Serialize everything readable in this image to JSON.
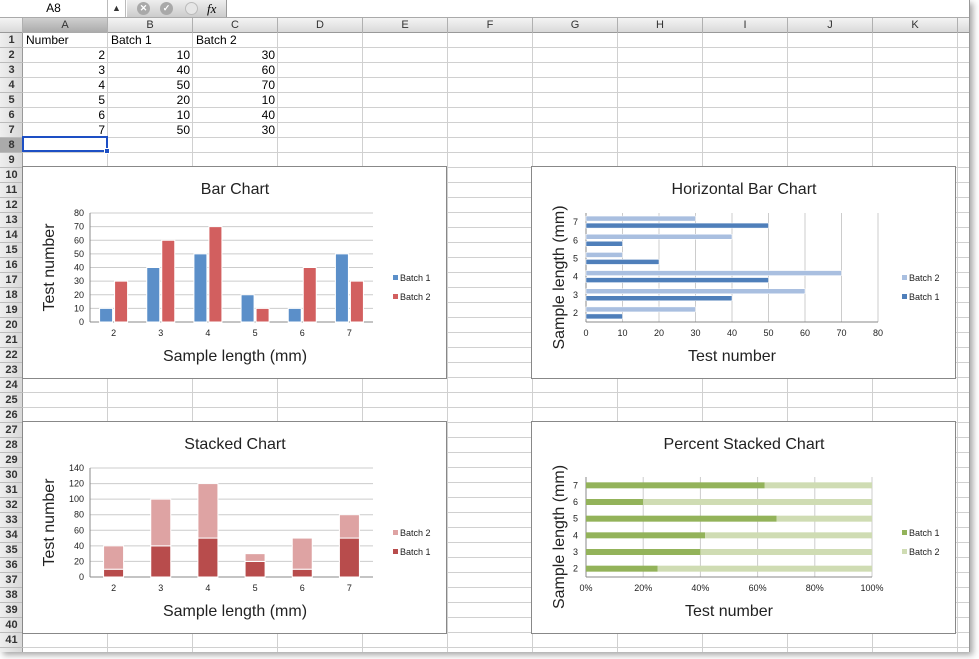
{
  "formula_bar": {
    "name_box": "A8",
    "stepper_icon": "up-down-arrows",
    "cancel_icon": "x-circle",
    "confirm_icon": "check-circle",
    "fx_label": "fx",
    "formula": ""
  },
  "columns": [
    "A",
    "B",
    "C",
    "D",
    "E",
    "F",
    "G",
    "H",
    "I",
    "J",
    "K"
  ],
  "selected_cell": "A8",
  "sheet": {
    "headers": [
      "Number",
      "Batch 1",
      "Batch 2"
    ],
    "rows": [
      [
        "2",
        "10",
        "30"
      ],
      [
        "3",
        "40",
        "60"
      ],
      [
        "4",
        "50",
        "70"
      ],
      [
        "5",
        "20",
        "10"
      ],
      [
        "6",
        "10",
        "40"
      ],
      [
        "7",
        "50",
        "30"
      ]
    ]
  },
  "chart_data": [
    {
      "type": "bar",
      "title": "Bar Chart",
      "xlabel": "Sample length (mm)",
      "ylabel": "Test number",
      "categories": [
        "2",
        "3",
        "4",
        "5",
        "6",
        "7"
      ],
      "series": [
        {
          "name": "Batch 1",
          "values": [
            10,
            40,
            50,
            20,
            10,
            50
          ],
          "color": "#5b8fc9"
        },
        {
          "name": "Batch 2",
          "values": [
            30,
            60,
            70,
            10,
            40,
            30
          ],
          "color": "#d25f5f"
        }
      ],
      "ylim": [
        0,
        80
      ],
      "ticks": [
        "0",
        "10",
        "20",
        "30",
        "40",
        "50",
        "60",
        "70",
        "80"
      ],
      "grid": true,
      "legend": "right"
    },
    {
      "type": "bar",
      "orientation": "horizontal",
      "title": "Horizontal Bar Chart",
      "xlabel": "Test number",
      "ylabel": "Sample length (mm)",
      "categories": [
        "2",
        "3",
        "4",
        "5",
        "6",
        "7"
      ],
      "series": [
        {
          "name": "Batch 1",
          "values": [
            10,
            40,
            50,
            20,
            10,
            50
          ],
          "color": "#4f7fba"
        },
        {
          "name": "Batch 2",
          "values": [
            30,
            60,
            70,
            10,
            40,
            30
          ],
          "color": "#a9bfe0"
        }
      ],
      "xlim": [
        0,
        80
      ],
      "ticks": [
        "0",
        "10",
        "20",
        "30",
        "40",
        "50",
        "60",
        "70",
        "80"
      ],
      "grid": true,
      "legend": "right",
      "legend_order": [
        "Batch 2",
        "Batch 1"
      ]
    },
    {
      "type": "bar",
      "stacked": true,
      "title": "Stacked Chart",
      "xlabel": "Sample length (mm)",
      "ylabel": "Test number",
      "categories": [
        "2",
        "3",
        "4",
        "5",
        "6",
        "7"
      ],
      "series": [
        {
          "name": "Batch 1",
          "values": [
            10,
            40,
            50,
            20,
            10,
            50
          ],
          "color": "#b84c4c"
        },
        {
          "name": "Batch 2",
          "values": [
            30,
            60,
            70,
            10,
            40,
            30
          ],
          "color": "#dea3a3"
        }
      ],
      "ylim": [
        0,
        140
      ],
      "ticks": [
        "0",
        "20",
        "40",
        "60",
        "80",
        "100",
        "120",
        "140"
      ],
      "grid": true,
      "legend": "right",
      "legend_order": [
        "Batch 2",
        "Batch 1"
      ]
    },
    {
      "type": "bar",
      "orientation": "horizontal",
      "stacked": "percent",
      "title": "Percent Stacked Chart",
      "xlabel": "Test number",
      "ylabel": "Sample length (mm)",
      "categories": [
        "2",
        "3",
        "4",
        "5",
        "6",
        "7"
      ],
      "series": [
        {
          "name": "Batch 1",
          "values": [
            10,
            40,
            50,
            20,
            10,
            50
          ],
          "color": "#93b35a"
        },
        {
          "name": "Batch 2",
          "values": [
            30,
            60,
            70,
            10,
            40,
            30
          ],
          "color": "#cfdcb3"
        }
      ],
      "xlim": [
        0,
        100
      ],
      "ticks": [
        "0%",
        "20%",
        "40%",
        "60%",
        "80%",
        "100%"
      ],
      "grid": true,
      "legend": "right",
      "legend_order": [
        "Batch 1",
        "Batch 2"
      ]
    }
  ]
}
